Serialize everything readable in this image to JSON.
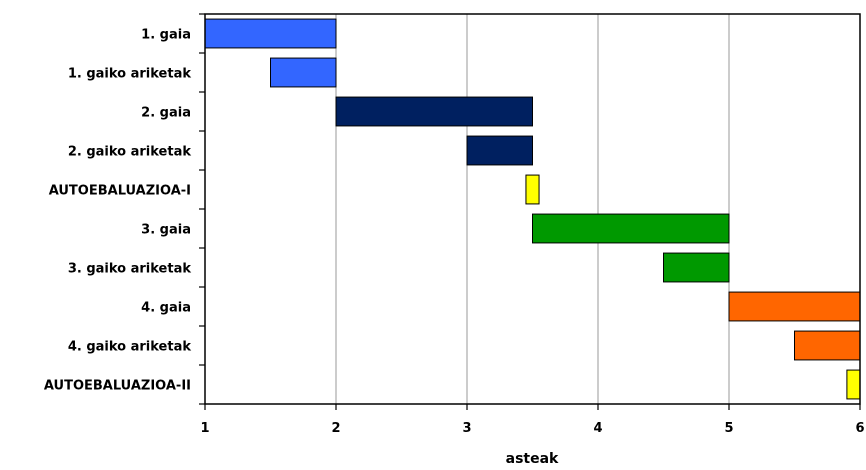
{
  "chart_data": {
    "type": "gantt",
    "xlabel": "asteak",
    "xlim": [
      1,
      6
    ],
    "xticks": [
      1,
      2,
      3,
      4,
      5,
      6
    ],
    "grid": "vertical",
    "tasks": [
      {
        "label": "1. gaia",
        "start": 1.0,
        "end": 2.0,
        "color": "#3366ff"
      },
      {
        "label": "1. gaiko ariketak",
        "start": 1.5,
        "end": 2.0,
        "color": "#3366ff"
      },
      {
        "label": "2. gaia",
        "start": 2.0,
        "end": 3.5,
        "color": "#002060"
      },
      {
        "label": "2. gaiko ariketak",
        "start": 3.0,
        "end": 3.5,
        "color": "#002060"
      },
      {
        "label": "AUTOEBALUAZIOA-I",
        "start": 3.45,
        "end": 3.55,
        "color": "#ffff00"
      },
      {
        "label": "3. gaia",
        "start": 3.5,
        "end": 5.0,
        "color": "#009900"
      },
      {
        "label": "3. gaiko ariketak",
        "start": 4.5,
        "end": 5.0,
        "color": "#009900"
      },
      {
        "label": "4. gaia",
        "start": 5.0,
        "end": 6.0,
        "color": "#ff6600"
      },
      {
        "label": "4. gaiko ariketak",
        "start": 5.5,
        "end": 6.0,
        "color": "#ff6600"
      },
      {
        "label": "AUTOEBALUAZIOA-II",
        "start": 5.9,
        "end": 6.0,
        "color": "#ffff00"
      }
    ]
  }
}
